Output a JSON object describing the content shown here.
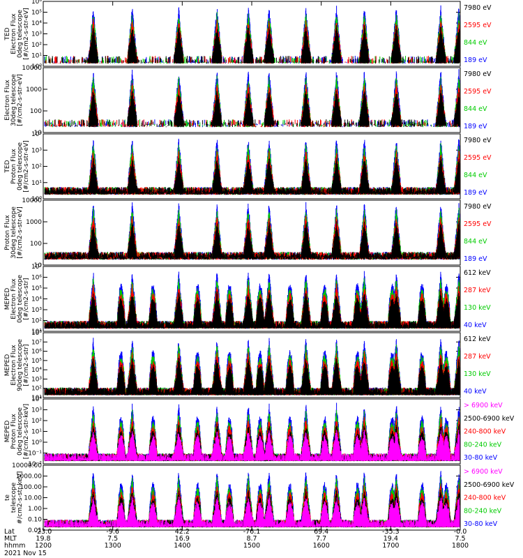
{
  "chart_data": [
    {
      "type": "line",
      "scale": "log",
      "ylabel": [
        "TED",
        "Electron Flux",
        "0deg telescope",
        "[#/cm2-s-str-eV]"
      ],
      "ticks": [
        "10⁶",
        "10⁵",
        "10⁴",
        "10³",
        "10²",
        "10¹",
        "10⁰"
      ],
      "tick_values": [
        1000000.0,
        100000.0,
        10000.0,
        1000.0,
        100.0,
        10.0,
        1.0
      ],
      "legend": [
        {
          "label": "7980 eV",
          "color": "#000000"
        },
        {
          "label": "2595 eV",
          "color": "#ff0000"
        },
        {
          "label": "844 eV",
          "color": "#00cc00"
        },
        {
          "label": "189 eV",
          "color": "#0000ff"
        }
      ]
    },
    {
      "type": "line",
      "scale": "log",
      "ylabel": [
        "Electron Flux",
        "30deg telescope",
        "[#/cm2-s-str-eV]"
      ],
      "ticks": [
        "10000",
        "1000",
        "100",
        "10"
      ],
      "tick_values": [
        10000,
        1000,
        100,
        10
      ],
      "legend": [
        {
          "label": "7980 eV",
          "color": "#000000"
        },
        {
          "label": "2595 eV",
          "color": "#ff0000"
        },
        {
          "label": "844 eV",
          "color": "#00cc00"
        },
        {
          "label": "189 eV",
          "color": "#0000ff"
        }
      ]
    },
    {
      "type": "line",
      "scale": "log",
      "ylabel": [
        "TED",
        "Proton Flux",
        "0deg telescope",
        "[#/cm2-s-str-eV]"
      ],
      "ticks": [
        "10⁴",
        "10³",
        "10²",
        "10¹",
        "10⁰"
      ],
      "tick_values": [
        10000.0,
        1000.0,
        100.0,
        10.0,
        1.0
      ],
      "legend": [
        {
          "label": "7980 eV",
          "color": "#000000"
        },
        {
          "label": "2595 eV",
          "color": "#ff0000"
        },
        {
          "label": "844 eV",
          "color": "#00cc00"
        },
        {
          "label": "189 eV",
          "color": "#0000ff"
        }
      ]
    },
    {
      "type": "line",
      "scale": "log",
      "ylabel": [
        "Proton Flux",
        "30deg telescope",
        "[#/cm2-s-str-eV]"
      ],
      "ticks": [
        "10000",
        "1000",
        "100",
        "10"
      ],
      "tick_values": [
        10000,
        1000,
        100,
        10
      ],
      "legend": [
        {
          "label": "7980 eV",
          "color": "#000000"
        },
        {
          "label": "2595 eV",
          "color": "#ff0000"
        },
        {
          "label": "844 eV",
          "color": "#00cc00"
        },
        {
          "label": "189 eV",
          "color": "#0000ff"
        }
      ]
    },
    {
      "type": "line",
      "scale": "log",
      "ylabel": [
        "MEPED",
        "Electron Flux",
        "0deg telescope",
        "[#/cm2-s-str]"
      ],
      "ticks": [
        "10⁷",
        "10⁶",
        "10⁵",
        "10⁴",
        "10³",
        "10²",
        "10¹"
      ],
      "tick_values": [
        10000000.0,
        1000000.0,
        100000.0,
        10000.0,
        1000.0,
        100.0,
        10.0
      ],
      "legend": [
        {
          "label": "612 keV",
          "color": "#000000"
        },
        {
          "label": "287 keV",
          "color": "#ff0000"
        },
        {
          "label": "130 keV",
          "color": "#00cc00"
        },
        {
          "label": "40 keV",
          "color": "#0000ff"
        }
      ]
    },
    {
      "type": "line",
      "scale": "log",
      "ylabel": [
        "MEPED",
        "Electron Flux",
        "90deg telescope",
        "[#/cm2-s-str]"
      ],
      "ticks": [
        "10⁸",
        "10⁷",
        "10⁶",
        "10⁵",
        "10⁴",
        "10³",
        "10²",
        "10¹"
      ],
      "tick_values": [
        100000000.0,
        10000000.0,
        1000000.0,
        100000.0,
        10000.0,
        1000.0,
        100.0,
        10.0
      ],
      "legend": [
        {
          "label": "612 keV",
          "color": "#000000"
        },
        {
          "label": "287 keV",
          "color": "#ff0000"
        },
        {
          "label": "130 keV",
          "color": "#00cc00"
        },
        {
          "label": "40 keV",
          "color": "#0000ff"
        }
      ]
    },
    {
      "type": "line",
      "scale": "log",
      "ylabel": [
        "MEPED",
        "Proton Flux",
        "0deg telescope",
        "[#/cm2-s-str-keV]"
      ],
      "ticks": [
        "10⁴",
        "10³",
        "10²",
        "10¹",
        "10⁰",
        "10⁻¹",
        "10⁻²"
      ],
      "tick_values": [
        10000.0,
        1000.0,
        100.0,
        10.0,
        1.0,
        0.1,
        0.01
      ],
      "legend": [
        {
          "label": "> 6900 keV",
          "color": "#ff00ff"
        },
        {
          "label": "2500-6900 keV",
          "color": "#000000"
        },
        {
          "label": "240-800 keV",
          "color": "#ff0000"
        },
        {
          "label": "80-240 keV",
          "color": "#00cc00"
        },
        {
          "label": "30-80 keV",
          "color": "#0000ff"
        }
      ]
    },
    {
      "type": "line",
      "scale": "log",
      "ylabel": [
        "te",
        "telescope",
        "#/cm2-s-str-keV]"
      ],
      "ticks": [
        "10000.00",
        "1000.00",
        "100.00",
        "10.00",
        "1.00",
        "0.10",
        "0.01"
      ],
      "tick_values": [
        10000.0,
        1000.0,
        100.0,
        10.0,
        1.0,
        0.1,
        0.01
      ],
      "legend": [
        {
          "label": "> 6900 keV",
          "color": "#ff00ff"
        },
        {
          "label": "2500-6900 keV",
          "color": "#000000"
        },
        {
          "label": "240-800 keV",
          "color": "#ff0000"
        },
        {
          "label": "80-240 keV",
          "color": "#00cc00"
        },
        {
          "label": "30-80 keV",
          "color": "#0000ff"
        }
      ]
    }
  ],
  "time_axis": {
    "row_labels": [
      "Lat",
      "MLT",
      "hhmm"
    ],
    "date": "2021 Nov 15",
    "ticks": [
      {
        "lat": "-23.0",
        "mlt": "19.8",
        "hhmm": "1200"
      },
      {
        "lat": "-9.6",
        "mlt": "7.5",
        "hhmm": "1300"
      },
      {
        "lat": "42.2",
        "mlt": "16.9",
        "hhmm": "1400"
      },
      {
        "lat": "-76.1",
        "mlt": "8.7",
        "hhmm": "1500"
      },
      {
        "lat": "69.4",
        "mlt": "7.7",
        "hhmm": "1600"
      },
      {
        "lat": "-35.3",
        "mlt": "19.4",
        "hhmm": "1700"
      },
      {
        "lat": "-0.0",
        "mlt": "7.5",
        "hhmm": "1800"
      }
    ]
  },
  "event_hours": [
    12.72,
    13.28,
    13.95,
    14.5,
    14.95,
    15.25,
    15.78,
    16.22,
    16.62,
    17.08,
    17.72,
    17.98
  ],
  "radiation_belt_hours": [
    13.12,
    13.58,
    14.22,
    14.68,
    15.12,
    15.55,
    16.05,
    16.52,
    17.02,
    17.45,
    17.8
  ]
}
